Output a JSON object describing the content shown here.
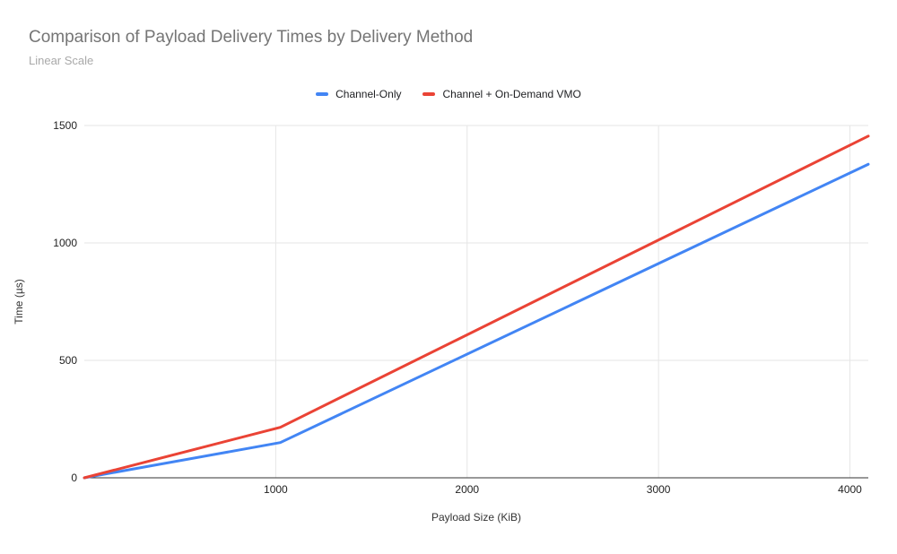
{
  "chart_data": {
    "type": "line",
    "title": "Comparison of Payload Delivery Times by Delivery Method",
    "subtitle": "Linear Scale",
    "xlabel": "Payload Size (KiB)",
    "ylabel": "Time (µs)",
    "x": [
      0,
      1024,
      4096
    ],
    "series": [
      {
        "name": "Channel-Only",
        "color": "#4285F4",
        "values": [
          0,
          150,
          1335
        ]
      },
      {
        "name": "Channel + On-Demand VMO",
        "color": "#EA4335",
        "values": [
          0,
          215,
          1455
        ]
      }
    ],
    "xlim": [
      0,
      4096
    ],
    "ylim": [
      0,
      1500
    ],
    "x_ticks": [
      1000,
      2000,
      3000,
      4000
    ],
    "y_ticks": [
      0,
      500,
      1000,
      1500
    ],
    "grid": true,
    "legend_position": "top-center",
    "colors": {
      "grid": "#e6e6e6",
      "axis_line": "#333333",
      "title_text": "#757575",
      "subtitle_text": "#a9a9a9"
    }
  }
}
